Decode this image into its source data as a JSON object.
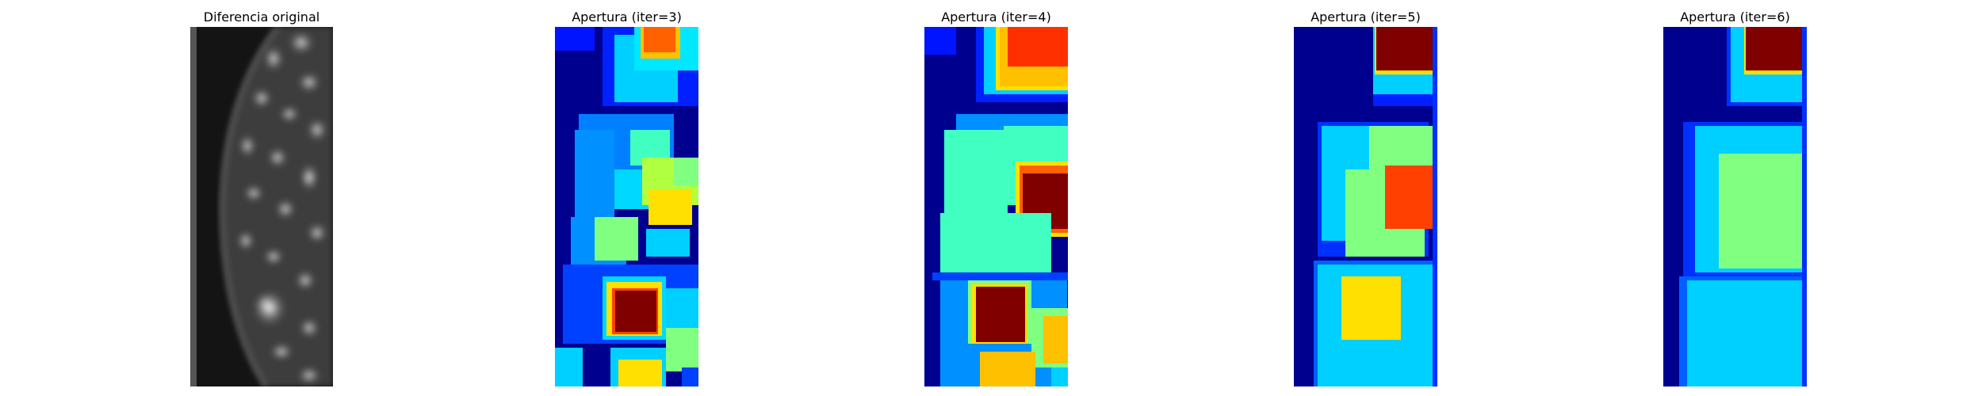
{
  "figure": {
    "panels": [
      {
        "id": "p0",
        "title": "Diferencia original",
        "colormap": "gray"
      },
      {
        "id": "p1",
        "title": "Apertura (iter=3)",
        "colormap": "jet"
      },
      {
        "id": "p2",
        "title": "Apertura (iter=4)",
        "colormap": "jet"
      },
      {
        "id": "p3",
        "title": "Apertura (iter=5)",
        "colormap": "jet"
      },
      {
        "id": "p4",
        "title": "Apertura (iter=6)",
        "colormap": "jet"
      }
    ]
  }
}
